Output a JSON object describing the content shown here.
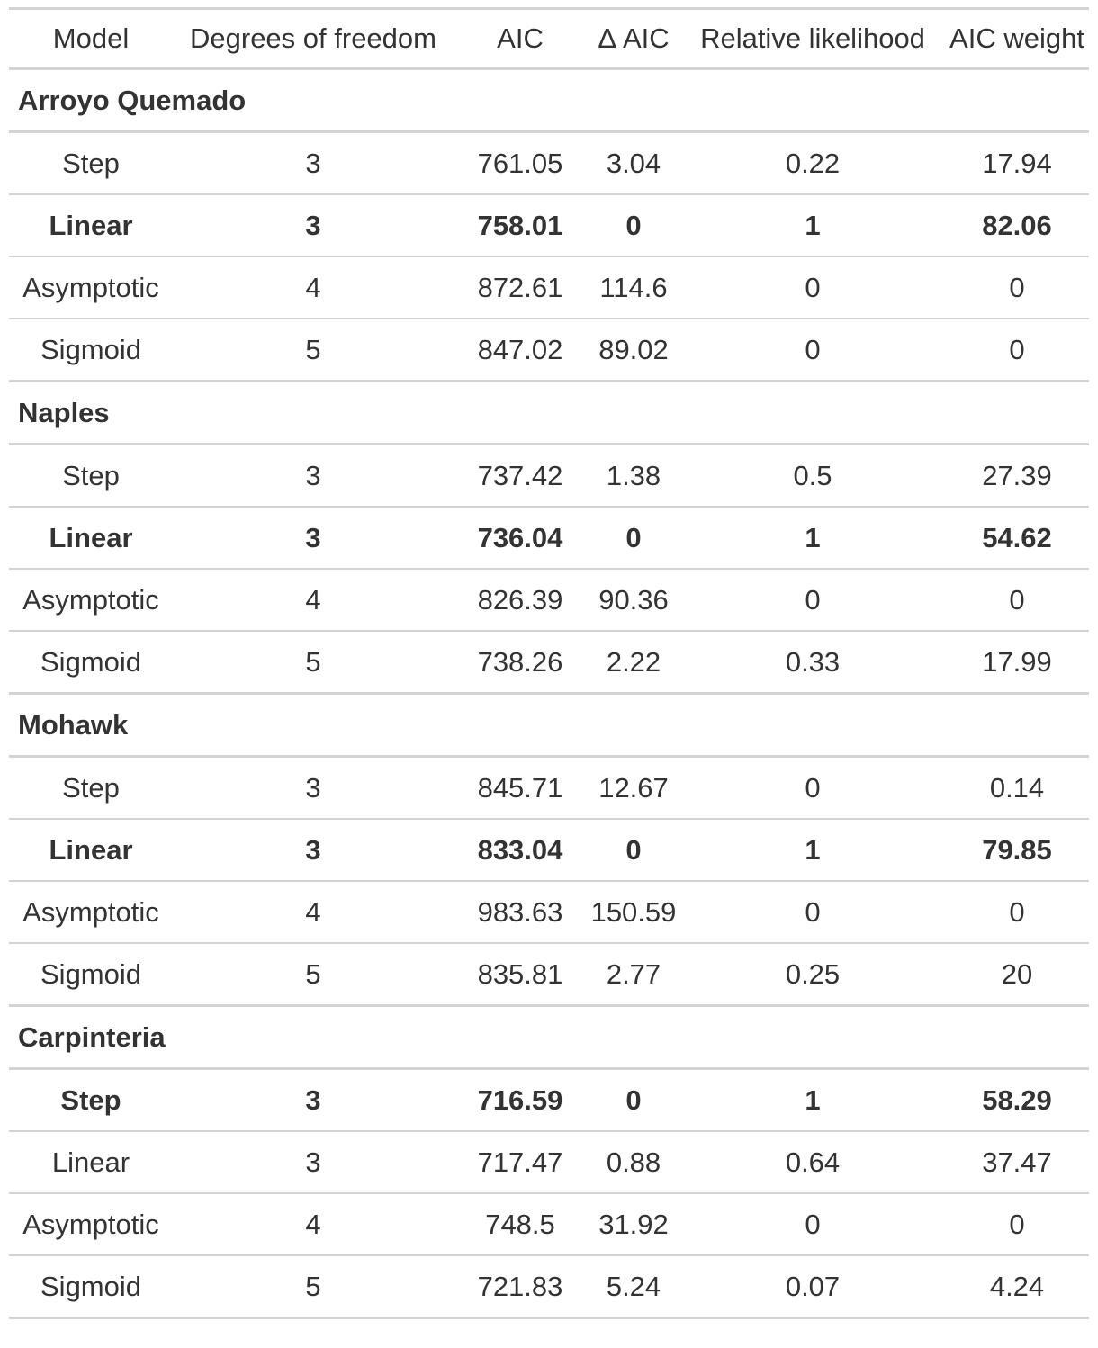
{
  "table": {
    "headers": [
      "Model",
      "Degrees of freedom",
      "AIC",
      "Δ AIC",
      "Relative likelihood",
      "AIC weight"
    ],
    "groups": [
      {
        "name": "Arroyo Quemado",
        "rows": [
          {
            "model": "Step",
            "df": "3",
            "aic": "761.05",
            "delta_aic": "3.04",
            "rel_likelihood": "0.22",
            "weight": "17.94",
            "best": false
          },
          {
            "model": "Linear",
            "df": "3",
            "aic": "758.01",
            "delta_aic": "0",
            "rel_likelihood": "1",
            "weight": "82.06",
            "best": true
          },
          {
            "model": "Asymptotic",
            "df": "4",
            "aic": "872.61",
            "delta_aic": "114.6",
            "rel_likelihood": "0",
            "weight": "0",
            "best": false
          },
          {
            "model": "Sigmoid",
            "df": "5",
            "aic": "847.02",
            "delta_aic": "89.02",
            "rel_likelihood": "0",
            "weight": "0",
            "best": false
          }
        ]
      },
      {
        "name": "Naples",
        "rows": [
          {
            "model": "Step",
            "df": "3",
            "aic": "737.42",
            "delta_aic": "1.38",
            "rel_likelihood": "0.5",
            "weight": "27.39",
            "best": false
          },
          {
            "model": "Linear",
            "df": "3",
            "aic": "736.04",
            "delta_aic": "0",
            "rel_likelihood": "1",
            "weight": "54.62",
            "best": true
          },
          {
            "model": "Asymptotic",
            "df": "4",
            "aic": "826.39",
            "delta_aic": "90.36",
            "rel_likelihood": "0",
            "weight": "0",
            "best": false
          },
          {
            "model": "Sigmoid",
            "df": "5",
            "aic": "738.26",
            "delta_aic": "2.22",
            "rel_likelihood": "0.33",
            "weight": "17.99",
            "best": false
          }
        ]
      },
      {
        "name": "Mohawk",
        "rows": [
          {
            "model": "Step",
            "df": "3",
            "aic": "845.71",
            "delta_aic": "12.67",
            "rel_likelihood": "0",
            "weight": "0.14",
            "best": false
          },
          {
            "model": "Linear",
            "df": "3",
            "aic": "833.04",
            "delta_aic": "0",
            "rel_likelihood": "1",
            "weight": "79.85",
            "best": true
          },
          {
            "model": "Asymptotic",
            "df": "4",
            "aic": "983.63",
            "delta_aic": "150.59",
            "rel_likelihood": "0",
            "weight": "0",
            "best": false
          },
          {
            "model": "Sigmoid",
            "df": "5",
            "aic": "835.81",
            "delta_aic": "2.77",
            "rel_likelihood": "0.25",
            "weight": "20",
            "best": false
          }
        ]
      },
      {
        "name": "Carpinteria",
        "rows": [
          {
            "model": "Step",
            "df": "3",
            "aic": "716.59",
            "delta_aic": "0",
            "rel_likelihood": "1",
            "weight": "58.29",
            "best": true
          },
          {
            "model": "Linear",
            "df": "3",
            "aic": "717.47",
            "delta_aic": "0.88",
            "rel_likelihood": "0.64",
            "weight": "37.47",
            "best": false
          },
          {
            "model": "Asymptotic",
            "df": "4",
            "aic": "748.5",
            "delta_aic": "31.92",
            "rel_likelihood": "0",
            "weight": "0",
            "best": false
          },
          {
            "model": "Sigmoid",
            "df": "5",
            "aic": "721.83",
            "delta_aic": "5.24",
            "rel_likelihood": "0.07",
            "weight": "4.24",
            "best": false
          }
        ]
      }
    ]
  }
}
